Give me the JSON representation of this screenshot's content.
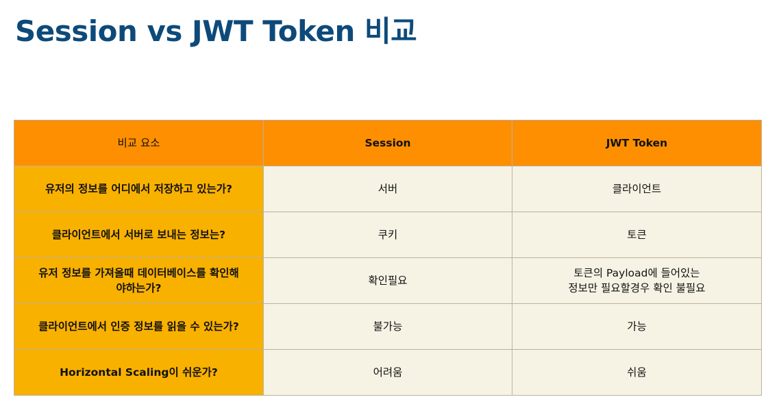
{
  "title": "Session vs JWT Token 비교",
  "table": {
    "headers": [
      "비교 요소",
      "Session",
      "JWT Token"
    ],
    "rows": [
      {
        "criterion": [
          "유저의 정보를 어디에서 저장하고 있는가?"
        ],
        "session": "서버",
        "jwt": [
          "클라이언트"
        ]
      },
      {
        "criterion": [
          "클라이언트에서 서버로 보내는 정보는?"
        ],
        "session": "쿠키",
        "jwt": [
          "토큰"
        ]
      },
      {
        "criterion": [
          "유저 정보를 가져올때 데이터베이스를 확인해",
          "야하는가?"
        ],
        "session": "확인필요",
        "jwt": [
          "토큰의 Payload에 들어있는",
          "정보만 필요할경우 확인 불필요"
        ]
      },
      {
        "criterion": [
          "클라이언트에서 인증 정보를 읽을 수 있는가?"
        ],
        "session": "불가능",
        "jwt": [
          "가능"
        ]
      },
      {
        "criterion": [
          "Horizontal Scaling이 쉬운가?"
        ],
        "session": "어려움",
        "jwt": [
          "쉬움"
        ]
      }
    ]
  },
  "colors": {
    "title": "#0d4a7a",
    "header_bg": "#fe8f00",
    "label_bg": "#f9b100",
    "cell_bg": "#f7f3e4"
  }
}
